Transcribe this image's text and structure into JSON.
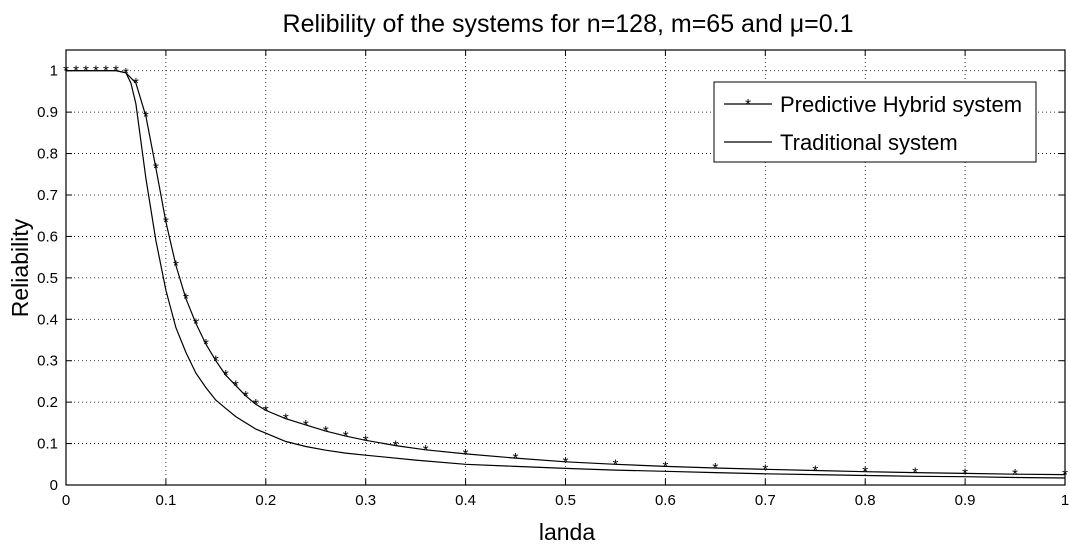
{
  "chart_data": {
    "type": "line",
    "title": "Relibility of the systems for n=128, m=65 and μ=0.1",
    "xlabel": "landa",
    "ylabel": "Reliability",
    "xlim": [
      0,
      1
    ],
    "ylim": [
      0,
      1.05
    ],
    "grid": true,
    "grid_style": "dotted",
    "legend_position": "top-right",
    "x_ticks": [
      "0",
      "0.1",
      "0.2",
      "0.3",
      "0.4",
      "0.5",
      "0.6",
      "0.7",
      "0.8",
      "0.9",
      "1"
    ],
    "y_ticks": [
      "0",
      "0.1",
      "0.2",
      "0.3",
      "0.4",
      "0.5",
      "0.6",
      "0.7",
      "0.8",
      "0.9",
      "1"
    ],
    "series": [
      {
        "name": "Predictive Hybrid system",
        "marker": "asterisk",
        "color": "#000000",
        "x": [
          0,
          0.01,
          0.02,
          0.03,
          0.04,
          0.05,
          0.06,
          0.07,
          0.08,
          0.09,
          0.1,
          0.11,
          0.12,
          0.13,
          0.14,
          0.15,
          0.16,
          0.17,
          0.18,
          0.19,
          0.2,
          0.22,
          0.24,
          0.26,
          0.28,
          0.3,
          0.33,
          0.36,
          0.4,
          0.45,
          0.5,
          0.55,
          0.6,
          0.65,
          0.7,
          0.75,
          0.8,
          0.85,
          0.9,
          0.95,
          1.0
        ],
        "y": [
          1.0,
          1.0,
          1.0,
          1.0,
          1.0,
          1.0,
          0.995,
          0.97,
          0.89,
          0.765,
          0.635,
          0.53,
          0.45,
          0.39,
          0.34,
          0.3,
          0.265,
          0.24,
          0.215,
          0.195,
          0.18,
          0.16,
          0.145,
          0.13,
          0.118,
          0.108,
          0.095,
          0.085,
          0.075,
          0.065,
          0.056,
          0.05,
          0.045,
          0.041,
          0.038,
          0.035,
          0.032,
          0.03,
          0.028,
          0.026,
          0.025
        ]
      },
      {
        "name": "Traditional system",
        "marker": "none",
        "color": "#000000",
        "x": [
          0,
          0.01,
          0.02,
          0.03,
          0.04,
          0.05,
          0.06,
          0.065,
          0.07,
          0.08,
          0.09,
          0.1,
          0.11,
          0.12,
          0.13,
          0.14,
          0.15,
          0.16,
          0.17,
          0.18,
          0.19,
          0.2,
          0.22,
          0.24,
          0.26,
          0.28,
          0.3,
          0.35,
          0.4,
          0.45,
          0.5,
          0.55,
          0.6,
          0.65,
          0.7,
          0.75,
          0.8,
          0.85,
          0.9,
          0.95,
          1.0
        ],
        "y": [
          1.0,
          1.0,
          1.0,
          1.0,
          1.0,
          1.0,
          0.995,
          0.97,
          0.92,
          0.74,
          0.59,
          0.47,
          0.38,
          0.32,
          0.27,
          0.235,
          0.205,
          0.185,
          0.165,
          0.15,
          0.135,
          0.125,
          0.105,
          0.093,
          0.084,
          0.077,
          0.072,
          0.06,
          0.05,
          0.045,
          0.04,
          0.036,
          0.033,
          0.03,
          0.027,
          0.025,
          0.023,
          0.021,
          0.02,
          0.018,
          0.017
        ]
      }
    ]
  }
}
